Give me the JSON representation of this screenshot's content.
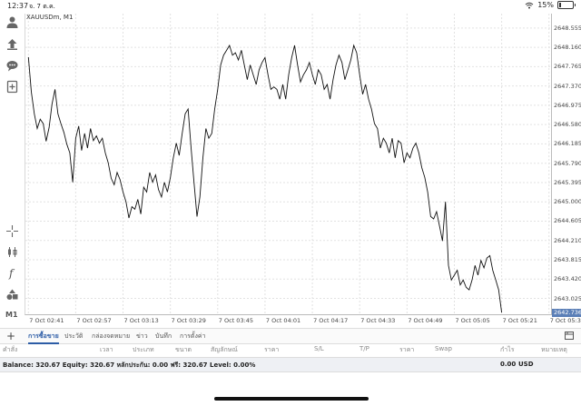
{
  "status": {
    "time": "12:37",
    "date": "จ. 7 ต.ค.",
    "battery_text": "15%",
    "battery_level": 0.15
  },
  "toolbar": {
    "icons": [
      "account-icon",
      "trade-icon",
      "chat-icon",
      "new-order-icon",
      "crosshair-icon",
      "chart-type-icon",
      "indicators-icon",
      "objects-icon"
    ],
    "timeframe": "M1"
  },
  "chart": {
    "symbol": "XAUUSDm, M1",
    "current_price": "2642.736"
  },
  "chart_data": {
    "type": "line",
    "ylim": [
      2642.7,
      2648.85
    ],
    "yticks": [
      "2648.555",
      "2648.160",
      "2647.765",
      "2647.370",
      "2646.975",
      "2646.580",
      "2646.185",
      "2645.790",
      "2645.395",
      "2645.000",
      "2644.605",
      "2644.210",
      "2643.815",
      "2643.420",
      "2643.025"
    ],
    "xticks": [
      "7 Oct 02:41",
      "7 Oct 02:57",
      "7 Oct 03:13",
      "7 Oct 03:29",
      "7 Oct 03:45",
      "7 Oct 04:01",
      "7 Oct 04:17",
      "7 Oct 04:33",
      "7 Oct 04:49",
      "7 Oct 05:05",
      "7 Oct 05:21",
      "7 Oct 05:37"
    ],
    "x_range_minutes": [
      -1,
      177
    ],
    "series": [
      {
        "values": [
          [
            0,
            2647.96
          ],
          [
            1,
            2647.25
          ],
          [
            2,
            2646.8
          ],
          [
            3,
            2646.5
          ],
          [
            4,
            2646.69
          ],
          [
            5,
            2646.6
          ],
          [
            6,
            2646.24
          ],
          [
            7,
            2646.52
          ],
          [
            8,
            2647.0
          ],
          [
            9,
            2647.3
          ],
          [
            10,
            2646.8
          ],
          [
            11,
            2646.6
          ],
          [
            12,
            2646.42
          ],
          [
            13,
            2646.18
          ],
          [
            14,
            2646.0
          ],
          [
            15,
            2645.4
          ],
          [
            16,
            2646.3
          ],
          [
            17,
            2646.55
          ],
          [
            18,
            2646.05
          ],
          [
            19,
            2646.4
          ],
          [
            20,
            2646.1
          ],
          [
            21,
            2646.5
          ],
          [
            22,
            2646.25
          ],
          [
            23,
            2646.35
          ],
          [
            24,
            2646.2
          ],
          [
            25,
            2646.3
          ],
          [
            26,
            2646.0
          ],
          [
            27,
            2645.8
          ],
          [
            28,
            2645.48
          ],
          [
            29,
            2645.35
          ],
          [
            30,
            2645.6
          ],
          [
            31,
            2645.45
          ],
          [
            32,
            2645.2
          ],
          [
            33,
            2645.0
          ],
          [
            34,
            2644.67
          ],
          [
            35,
            2644.9
          ],
          [
            36,
            2644.85
          ],
          [
            37,
            2645.05
          ],
          [
            38,
            2644.75
          ],
          [
            39,
            2645.3
          ],
          [
            40,
            2645.2
          ],
          [
            41,
            2645.6
          ],
          [
            42,
            2645.4
          ],
          [
            43,
            2645.55
          ],
          [
            44,
            2645.25
          ],
          [
            45,
            2645.1
          ],
          [
            46,
            2645.4
          ],
          [
            47,
            2645.2
          ],
          [
            48,
            2645.5
          ],
          [
            49,
            2645.9
          ],
          [
            50,
            2646.2
          ],
          [
            51,
            2645.95
          ],
          [
            52,
            2646.4
          ],
          [
            53,
            2646.8
          ],
          [
            54,
            2646.9
          ],
          [
            55,
            2646.1
          ],
          [
            56,
            2645.4
          ],
          [
            57,
            2644.7
          ],
          [
            58,
            2645.1
          ],
          [
            59,
            2645.9
          ],
          [
            60,
            2646.5
          ],
          [
            61,
            2646.3
          ],
          [
            62,
            2646.4
          ],
          [
            63,
            2646.9
          ],
          [
            64,
            2647.3
          ],
          [
            65,
            2647.8
          ],
          [
            66,
            2648.0
          ],
          [
            67,
            2648.1
          ],
          [
            68,
            2648.2
          ],
          [
            69,
            2648.0
          ],
          [
            70,
            2648.05
          ],
          [
            71,
            2647.9
          ],
          [
            72,
            2648.1
          ],
          [
            73,
            2647.8
          ],
          [
            74,
            2647.5
          ],
          [
            75,
            2647.8
          ],
          [
            76,
            2647.6
          ],
          [
            77,
            2647.4
          ],
          [
            78,
            2647.7
          ],
          [
            79,
            2647.85
          ],
          [
            80,
            2647.95
          ],
          [
            81,
            2647.6
          ],
          [
            82,
            2647.3
          ],
          [
            83,
            2647.35
          ],
          [
            84,
            2647.3
          ],
          [
            85,
            2647.1
          ],
          [
            86,
            2647.4
          ],
          [
            87,
            2647.1
          ],
          [
            88,
            2647.6
          ],
          [
            89,
            2647.95
          ],
          [
            90,
            2648.2
          ],
          [
            91,
            2647.8
          ],
          [
            92,
            2647.45
          ],
          [
            93,
            2647.6
          ],
          [
            94,
            2647.7
          ],
          [
            95,
            2647.85
          ],
          [
            96,
            2647.6
          ],
          [
            97,
            2647.4
          ],
          [
            98,
            2647.7
          ],
          [
            99,
            2647.6
          ],
          [
            100,
            2647.3
          ],
          [
            101,
            2647.4
          ],
          [
            102,
            2647.1
          ],
          [
            103,
            2647.5
          ],
          [
            104,
            2647.8
          ],
          [
            105,
            2648.0
          ],
          [
            106,
            2647.85
          ],
          [
            107,
            2647.5
          ],
          [
            108,
            2647.7
          ],
          [
            109,
            2647.9
          ],
          [
            110,
            2648.2
          ],
          [
            111,
            2648.05
          ],
          [
            112,
            2647.6
          ],
          [
            113,
            2647.2
          ],
          [
            114,
            2647.4
          ],
          [
            115,
            2647.1
          ],
          [
            116,
            2646.9
          ],
          [
            117,
            2646.6
          ],
          [
            118,
            2646.5
          ],
          [
            119,
            2646.1
          ],
          [
            120,
            2646.3
          ],
          [
            121,
            2646.2
          ],
          [
            122,
            2646.0
          ],
          [
            123,
            2646.3
          ],
          [
            124,
            2645.9
          ],
          [
            125,
            2646.25
          ],
          [
            126,
            2646.2
          ],
          [
            127,
            2645.8
          ],
          [
            128,
            2646.0
          ],
          [
            129,
            2645.9
          ],
          [
            130,
            2646.1
          ],
          [
            131,
            2646.2
          ],
          [
            132,
            2646.0
          ],
          [
            133,
            2645.7
          ],
          [
            134,
            2645.5
          ],
          [
            135,
            2645.2
          ],
          [
            136,
            2644.7
          ],
          [
            137,
            2644.65
          ],
          [
            138,
            2644.8
          ],
          [
            139,
            2644.5
          ],
          [
            140,
            2644.2
          ],
          [
            141,
            2645.0
          ],
          [
            142,
            2643.7
          ],
          [
            143,
            2643.4
          ],
          [
            144,
            2643.5
          ],
          [
            145,
            2643.6
          ],
          [
            146,
            2643.3
          ],
          [
            147,
            2643.4
          ],
          [
            148,
            2643.25
          ],
          [
            149,
            2643.2
          ],
          [
            150,
            2643.4
          ],
          [
            151,
            2643.7
          ],
          [
            152,
            2643.5
          ],
          [
            153,
            2643.8
          ],
          [
            154,
            2643.65
          ],
          [
            155,
            2643.85
          ],
          [
            156,
            2643.9
          ],
          [
            157,
            2643.6
          ],
          [
            158,
            2643.4
          ],
          [
            159,
            2643.2
          ],
          [
            160,
            2642.736
          ]
        ]
      }
    ]
  },
  "tabs": [
    "การซื้อขาย",
    "ประวัติ",
    "กล่องจดหมาย",
    "ข่าว",
    "บันทึก",
    "การตั้งค่า"
  ],
  "columns": [
    "คำสั่ง",
    "เวลา",
    "ประเภท",
    "ขนาด",
    "สัญลักษณ์",
    "ราคา",
    "S/L",
    "T/P",
    "ราคา",
    "Swap",
    "กำไร",
    "หมายเหตุ"
  ],
  "balance": {
    "text": "Balance: 320.67 Equity: 320.67 หลักประกัน: 0.00 ฟรี: 320.67 Level: 0.00%",
    "profit": "0.00",
    "currency": "USD"
  }
}
